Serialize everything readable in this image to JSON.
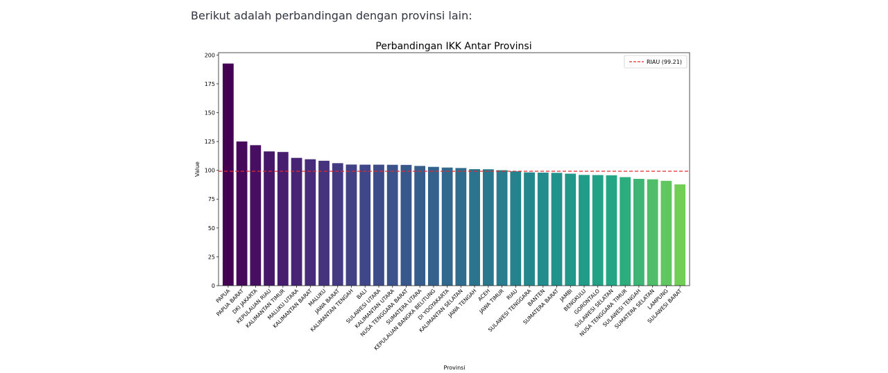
{
  "intro_text": "Berikut adalah perbandingan dengan provinsi lain:",
  "chart_data": {
    "type": "bar",
    "title": "Perbandingan IKK Antar Provinsi",
    "xlabel": "Provinsi",
    "ylabel": "Value",
    "ylim": [
      0,
      202
    ],
    "yticks": [
      0,
      25,
      50,
      75,
      100,
      125,
      150,
      175,
      200
    ],
    "grid": false,
    "legend_position": "top-right",
    "colormap": "viridis",
    "reference_line": {
      "label": "RIAU (99.21)",
      "value": 99.21,
      "color": "#e8282b",
      "style": "dashed"
    },
    "categories": [
      "PAPUA",
      "PAPUA BARAT",
      "DKI JAKARTA",
      "KEPULAUAN RIAU",
      "KALIMANTAN TIMUR",
      "MALUKU UTARA",
      "KALIMANTAN BARAT",
      "MALUKU",
      "JAWA BARAT",
      "KALIMANTAN TENGAH",
      "BALI",
      "SULAWESI UTARA",
      "KALIMANTAN UTARA",
      "NUSA TENGGARA BARAT",
      "SUMATERA UTARA",
      "KEPULAUAN BANGKA BELITUNG",
      "DI YOGYAKARTA",
      "KALIMANTAN SELATAN",
      "JAWA TENGAH",
      "ACEH",
      "JAWA TIMUR",
      "RIAU",
      "SULAWESI TENGGARA",
      "BANTEN",
      "SUMATERA BARAT",
      "JAMBI",
      "BENGKULU",
      "GORONTALO",
      "SULAWESI SELATAN",
      "NUSA TENGGARA TIMUR",
      "SULAWESI TENGAH",
      "SUMATERA SELATAN",
      "LAMPUNG",
      "SULAWESI BARAT"
    ],
    "values": [
      192.6,
      125.0,
      121.8,
      116.4,
      115.9,
      110.8,
      109.6,
      108.3,
      106.2,
      105.0,
      104.9,
      104.9,
      104.8,
      104.7,
      103.8,
      103.0,
      102.4,
      102.0,
      101.0,
      100.9,
      100.1,
      99.21,
      98.2,
      98.0,
      97.8,
      97.1,
      96.0,
      95.9,
      95.7,
      94.1,
      92.6,
      92.2,
      90.9,
      87.8
    ]
  }
}
